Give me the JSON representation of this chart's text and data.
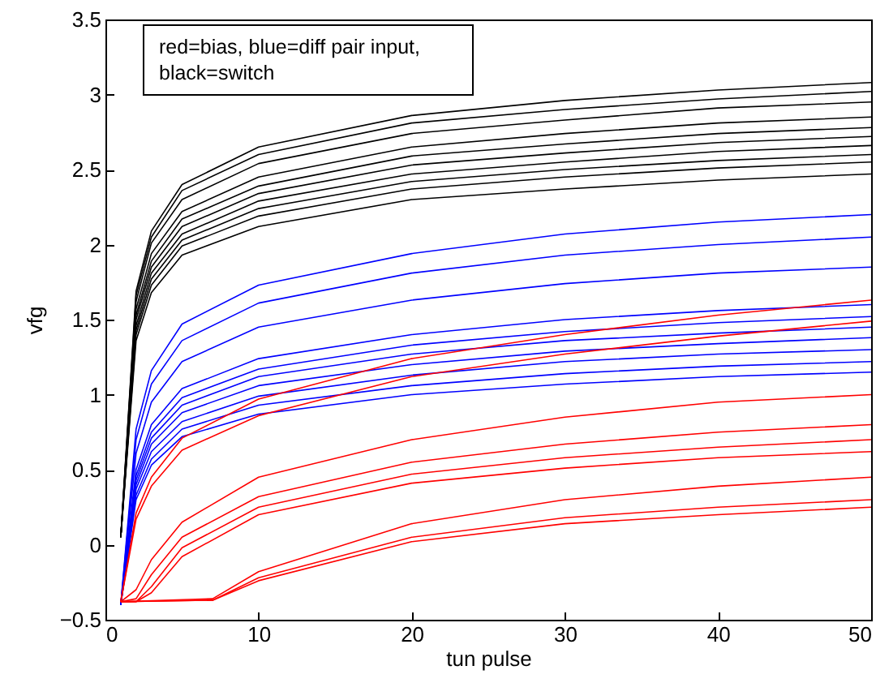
{
  "chart_data": {
    "type": "line",
    "xlabel": "tun pulse",
    "ylabel": "vfg",
    "annotations": [
      "red=bias, blue=diff pair input,",
      "black=switch"
    ],
    "x": [
      1,
      2,
      3,
      5,
      10,
      20,
      30,
      40,
      50
    ],
    "xlim": [
      0,
      50
    ],
    "xticks": [
      0,
      10,
      20,
      30,
      40,
      50
    ],
    "ylim": [
      -0.5,
      3.5
    ],
    "yticks": [
      {
        "value": -0.5,
        "label": "−0.5"
      },
      0,
      0.5,
      1,
      1.5,
      2,
      2.5,
      3,
      3.5
    ],
    "grid": false,
    "marker": "none",
    "line_style": "solid",
    "series": [
      {
        "color": "#000000",
        "values": [
          0.05,
          1.69,
          2.09,
          2.4,
          2.65,
          2.86,
          2.96,
          3.03,
          3.08
        ]
      },
      {
        "color": "#000000",
        "values": [
          0.05,
          1.66,
          2.05,
          2.36,
          2.6,
          2.81,
          2.9,
          2.97,
          3.02
        ]
      },
      {
        "color": "#000000",
        "values": [
          0.05,
          1.62,
          2.01,
          2.3,
          2.54,
          2.74,
          2.83,
          2.91,
          2.95
        ]
      },
      {
        "color": "#000000",
        "values": [
          0.05,
          1.57,
          1.94,
          2.22,
          2.45,
          2.65,
          2.74,
          2.81,
          2.85
        ]
      },
      {
        "color": "#000000",
        "values": [
          0.05,
          1.53,
          1.89,
          2.17,
          2.39,
          2.59,
          2.67,
          2.74,
          2.78
        ]
      },
      {
        "color": "#000000",
        "values": [
          0.05,
          1.5,
          1.85,
          2.12,
          2.34,
          2.53,
          2.61,
          2.68,
          2.72
        ]
      },
      {
        "color": "#000000",
        "values": [
          0.05,
          1.46,
          1.81,
          2.07,
          2.29,
          2.47,
          2.55,
          2.62,
          2.66
        ]
      },
      {
        "color": "#000000",
        "values": [
          0.05,
          1.43,
          1.77,
          2.03,
          2.24,
          2.42,
          2.5,
          2.56,
          2.6
        ]
      },
      {
        "color": "#000000",
        "values": [
          0.05,
          1.4,
          1.73,
          1.99,
          2.19,
          2.37,
          2.45,
          2.51,
          2.55
        ]
      },
      {
        "color": "#000000",
        "values": [
          0.05,
          1.36,
          1.68,
          1.93,
          2.12,
          2.3,
          2.37,
          2.43,
          2.47
        ]
      },
      {
        "color": "#0000ff",
        "values": [
          -0.4,
          0.77,
          1.16,
          1.47,
          1.73,
          1.94,
          2.07,
          2.15,
          2.2
        ]
      },
      {
        "color": "#0000ff",
        "values": [
          -0.4,
          0.7,
          1.07,
          1.36,
          1.61,
          1.81,
          1.93,
          2.0,
          2.05
        ]
      },
      {
        "color": "#0000ff",
        "values": [
          -0.4,
          0.61,
          0.95,
          1.22,
          1.45,
          1.63,
          1.74,
          1.81,
          1.85
        ]
      },
      {
        "color": "#0000ff",
        "values": [
          -0.4,
          0.5,
          0.8,
          1.04,
          1.24,
          1.4,
          1.5,
          1.56,
          1.6
        ]
      },
      {
        "color": "#0000ff",
        "values": [
          -0.4,
          0.46,
          0.75,
          0.98,
          1.17,
          1.33,
          1.42,
          1.48,
          1.52
        ]
      },
      {
        "color": "#0000ff",
        "values": [
          -0.4,
          0.43,
          0.71,
          0.93,
          1.12,
          1.27,
          1.36,
          1.41,
          1.45
        ]
      },
      {
        "color": "#0000ff",
        "values": [
          -0.4,
          0.4,
          0.67,
          0.88,
          1.06,
          1.2,
          1.29,
          1.34,
          1.38
        ]
      },
      {
        "color": "#0000ff",
        "values": [
          -0.4,
          0.37,
          0.62,
          0.82,
          0.99,
          1.13,
          1.22,
          1.27,
          1.3
        ]
      },
      {
        "color": "#0000ff",
        "values": [
          -0.4,
          0.33,
          0.57,
          0.77,
          0.93,
          1.06,
          1.14,
          1.19,
          1.22
        ]
      },
      {
        "color": "#0000ff",
        "values": [
          -0.4,
          0.3,
          0.53,
          0.72,
          0.87,
          1.0,
          1.07,
          1.12,
          1.15
        ]
      },
      {
        "color": "#ff0000",
        "values": [
          -0.38,
          0.21,
          0.45,
          0.71,
          0.97,
          1.24,
          1.4,
          1.53,
          1.63
        ]
      },
      {
        "color": "#ff0000",
        "values": [
          -0.38,
          0.17,
          0.39,
          0.63,
          0.86,
          1.12,
          1.27,
          1.39,
          1.49
        ]
      },
      {
        "color": "#ff0000",
        "values": [
          -0.38,
          -0.3,
          -0.1,
          0.15,
          0.45,
          0.7,
          0.85,
          0.95,
          1.0
        ]
      },
      {
        "color": "#ff0000",
        "values": [
          -0.38,
          -0.36,
          -0.2,
          0.05,
          0.32,
          0.55,
          0.67,
          0.75,
          0.8
        ]
      },
      {
        "color": "#ff0000",
        "values": [
          -0.38,
          -0.38,
          -0.28,
          -0.02,
          0.25,
          0.47,
          0.58,
          0.65,
          0.7
        ]
      },
      {
        "color": "#ff0000",
        "values": [
          -0.38,
          -0.38,
          -0.32,
          -0.08,
          0.2,
          0.41,
          0.51,
          0.58,
          0.62
        ]
      },
      {
        "color": "#ff0000",
        "x": [
          1,
          7,
          10,
          20,
          30,
          40,
          50
        ],
        "values": [
          -0.38,
          -0.36,
          -0.18,
          0.14,
          0.3,
          0.39,
          0.45
        ]
      },
      {
        "color": "#ff0000",
        "x": [
          1,
          7,
          10,
          20,
          30,
          40,
          50
        ],
        "values": [
          -0.38,
          -0.37,
          -0.22,
          0.05,
          0.18,
          0.25,
          0.3
        ]
      },
      {
        "color": "#ff0000",
        "x": [
          1,
          7,
          10,
          20,
          30,
          40,
          50
        ],
        "values": [
          -0.38,
          -0.37,
          -0.24,
          0.02,
          0.14,
          0.2,
          0.25
        ]
      }
    ]
  }
}
